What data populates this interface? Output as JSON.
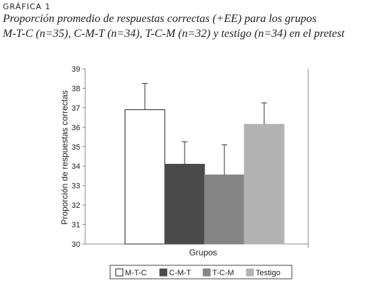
{
  "figure_label": "GRÁFICA 1",
  "title_line1": "Proporción promedio de respuestas correctas (+EE) para los grupos",
  "title_line2": "M-T-C (n=35), C-M-T (n=34), T-C-M (n=32) y testigo (n=34) en el pretest",
  "chart_data": {
    "type": "bar",
    "categories": [
      "M-T-C",
      "C-M-T",
      "T-C-M",
      "Testigo"
    ],
    "values": [
      36.9,
      34.1,
      33.55,
      36.15
    ],
    "error_upper": [
      38.25,
      35.25,
      35.1,
      37.25
    ],
    "colors": [
      "#ffffff",
      "#4a4a4a",
      "#858585",
      "#b3b3b3"
    ],
    "xlabel": "Grupos",
    "ylabel": "Proporción de respuestas correctas",
    "ylim": [
      30,
      39
    ],
    "yticks": [
      30,
      31,
      32,
      33,
      34,
      35,
      36,
      37,
      38,
      39
    ],
    "grid": false,
    "legend": [
      "M-T-C",
      "C-M-T",
      "T-C-M",
      "Testigo"
    ],
    "legend_position": "bottom"
  }
}
